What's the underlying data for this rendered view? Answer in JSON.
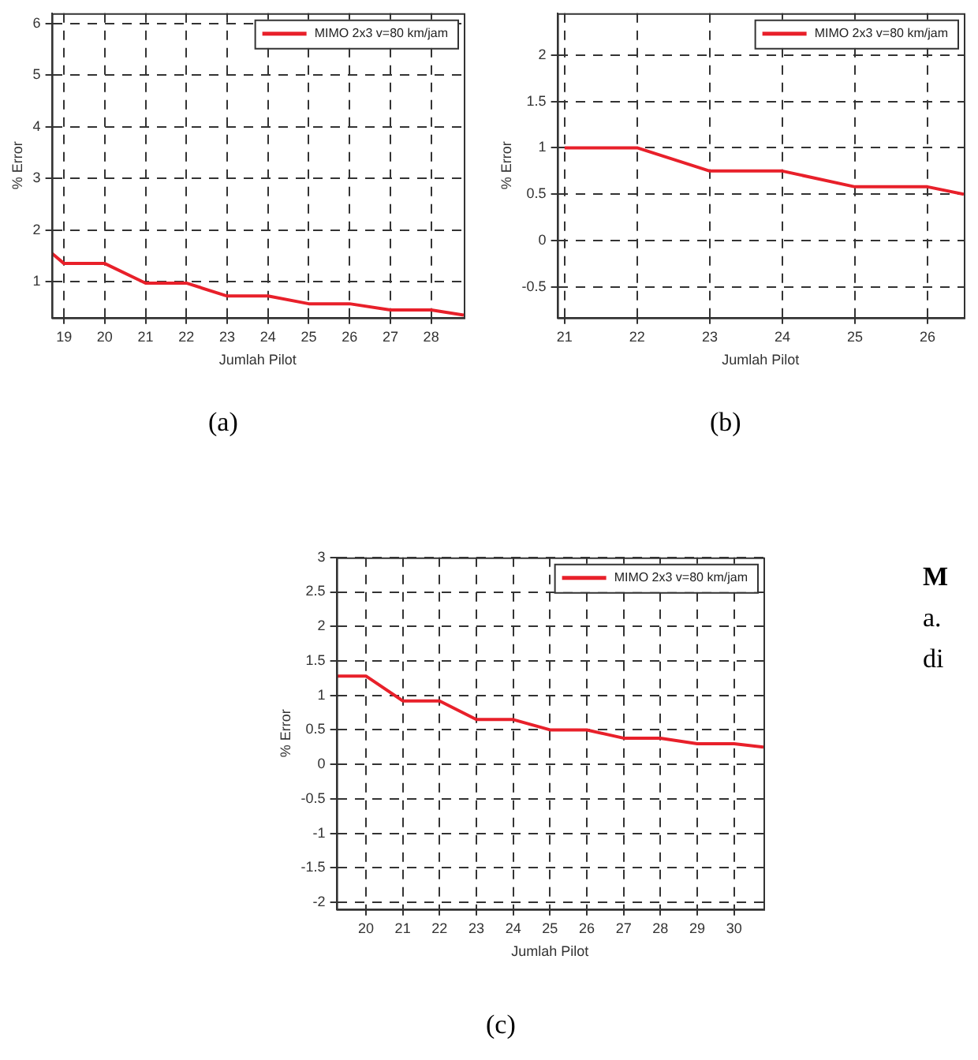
{
  "chart_data": [
    {
      "type": "line",
      "xlabel": "Jumlah Pilot",
      "ylabel": "% Error",
      "annotations": [
        "(a)"
      ],
      "x": [
        18.7,
        19,
        20,
        21,
        22,
        23,
        24,
        25,
        26,
        27,
        28,
        28.8
      ],
      "series": [
        {
          "name": "MIMO 2x3 v=80 km/jam",
          "color": "#e8202a",
          "values": [
            1.55,
            1.35,
            1.35,
            0.97,
            0.97,
            0.72,
            0.72,
            0.57,
            0.57,
            0.45,
            0.45,
            0.35
          ]
        }
      ],
      "xlim": [
        18.7,
        28.8
      ],
      "ylim": [
        0.3,
        6.2
      ],
      "xticks": [
        19,
        20,
        21,
        22,
        23,
        24,
        25,
        26,
        27,
        28
      ],
      "yticks": [
        1,
        2,
        3,
        4,
        5,
        6
      ],
      "grid": true,
      "legend": "top right",
      "line_style": "solid"
    },
    {
      "type": "line",
      "xlabel": "Jumlah Pilot",
      "ylabel": "% Error",
      "annotations": [
        "(b)"
      ],
      "x": [
        21,
        22,
        23,
        24,
        25,
        26,
        26.5
      ],
      "series": [
        {
          "name": "MIMO 2x3 v=80 km/jam",
          "color": "#e8202a",
          "values": [
            1,
            1,
            0.75,
            0.75,
            0.58,
            0.58,
            0.5
          ]
        }
      ],
      "xlim": [
        20.9,
        26.5
      ],
      "ylim": [
        -0.83,
        2.45
      ],
      "xticks": [
        21,
        22,
        23,
        24,
        25,
        26
      ],
      "yticks": [
        -0.5,
        0,
        0.5,
        1,
        1.5,
        2
      ],
      "grid": true,
      "legend": "top right",
      "line_style": "solid"
    },
    {
      "type": "line",
      "xlabel": "Jumlah Pilot",
      "ylabel": "% Error",
      "annotations": [
        "(c)",
        "M",
        "a.",
        "di"
      ],
      "x": [
        19.2,
        20,
        21,
        22,
        23,
        24,
        25,
        26,
        27,
        28,
        29,
        30,
        30.8
      ],
      "series": [
        {
          "name": "MIMO 2x3 v=80 km/jam",
          "color": "#e8202a",
          "values": [
            1.28,
            1.28,
            0.92,
            0.92,
            0.65,
            0.65,
            0.5,
            0.5,
            0.38,
            0.38,
            0.3,
            0.3,
            0.25
          ]
        }
      ],
      "xlim": [
        19.2,
        30.8
      ],
      "ylim": [
        -2.1,
        3
      ],
      "xticks": [
        20,
        21,
        22,
        23,
        24,
        25,
        26,
        27,
        28,
        29,
        30
      ],
      "yticks": [
        -2,
        -1.5,
        -1,
        -0.5,
        0,
        0.5,
        1,
        1.5,
        2,
        2.5,
        3
      ],
      "grid": true,
      "legend": "top right",
      "line_style": "solid"
    }
  ]
}
